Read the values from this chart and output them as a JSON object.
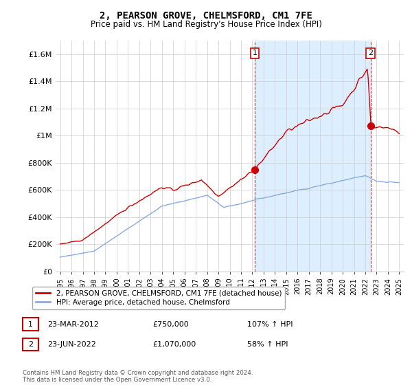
{
  "title": "2, PEARSON GROVE, CHELMSFORD, CM1 7FE",
  "subtitle": "Price paid vs. HM Land Registry's House Price Index (HPI)",
  "ylim": [
    0,
    1700000
  ],
  "yticks": [
    0,
    200000,
    400000,
    600000,
    800000,
    1000000,
    1200000,
    1400000,
    1600000
  ],
  "ytick_labels": [
    "£0",
    "£200K",
    "£400K",
    "£600K",
    "£800K",
    "£1M",
    "£1.2M",
    "£1.4M",
    "£1.6M"
  ],
  "xlim_start": 1994.6,
  "xlim_end": 2025.4,
  "sale1_x": 2012.22,
  "sale1_y": 750000,
  "sale2_x": 2022.47,
  "sale2_y": 1070000,
  "sale1_label": "1",
  "sale2_label": "2",
  "line_color_house": "#cc0000",
  "line_color_hpi": "#88aadd",
  "shade_color": "#ddeeff",
  "grid_color": "#cccccc",
  "dashed_line_color": "#cc0000",
  "legend_house": "2, PEARSON GROVE, CHELMSFORD, CM1 7FE (detached house)",
  "legend_hpi": "HPI: Average price, detached house, Chelmsford",
  "table_row1": [
    "1",
    "23-MAR-2012",
    "£750,000",
    "107% ↑ HPI"
  ],
  "table_row2": [
    "2",
    "23-JUN-2022",
    "£1,070,000",
    "58% ↑ HPI"
  ],
  "footnote": "Contains HM Land Registry data © Crown copyright and database right 2024.\nThis data is licensed under the Open Government Licence v3.0.",
  "background_color": "#ffffff"
}
